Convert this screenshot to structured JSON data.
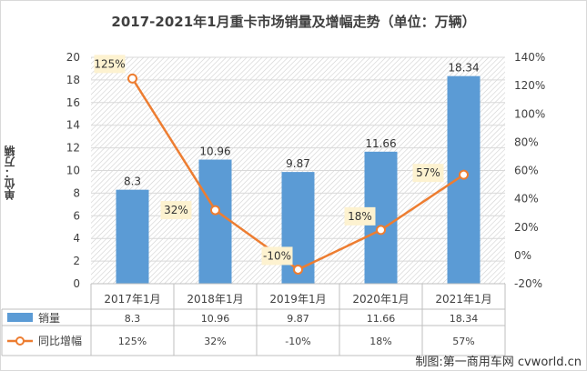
{
  "title": "2017-2021年1月重卡市场销量及增幅走势（单位：万辆）",
  "ylabel": "单位：万辆",
  "credit": "制图:第一商用车网 cvworld.cn",
  "colors": {
    "bar": "#5b9bd5",
    "line": "#ed7d31",
    "label_bg": "#fdf2d0"
  },
  "chart_data": {
    "type": "bar",
    "categories": [
      "2017年1月",
      "2018年1月",
      "2019年1月",
      "2020年1月",
      "2021年1月"
    ],
    "series": [
      {
        "name": "销量",
        "type": "bar",
        "axis": "left",
        "values": [
          8.3,
          10.96,
          9.87,
          11.66,
          18.34
        ],
        "labels": [
          "8.3",
          "10.96",
          "9.87",
          "11.66",
          "18.34"
        ]
      },
      {
        "name": "同比增幅",
        "type": "line",
        "axis": "right",
        "values": [
          125,
          32,
          -10,
          18,
          57
        ],
        "labels": [
          "125%",
          "32%",
          "-10%",
          "18%",
          "57%"
        ]
      }
    ],
    "y_left": {
      "min": 0,
      "max": 20,
      "step": 2,
      "ticks": [
        "0",
        "2",
        "4",
        "6",
        "8",
        "10",
        "12",
        "14",
        "16",
        "18",
        "20"
      ]
    },
    "y_right": {
      "min": -20,
      "max": 140,
      "step": 20,
      "ticks": [
        "-20%",
        "0%",
        "20%",
        "40%",
        "60%",
        "80%",
        "100%",
        "120%",
        "140%"
      ]
    },
    "grid": true,
    "legend": "data-table-bottom",
    "table": {
      "rows": [
        {
          "key": "销量",
          "cells": [
            "8.3",
            "10.96",
            "9.87",
            "11.66",
            "18.34"
          ]
        },
        {
          "key": "同比增幅",
          "cells": [
            "125%",
            "32%",
            "-10%",
            "18%",
            "57%"
          ]
        }
      ]
    }
  }
}
